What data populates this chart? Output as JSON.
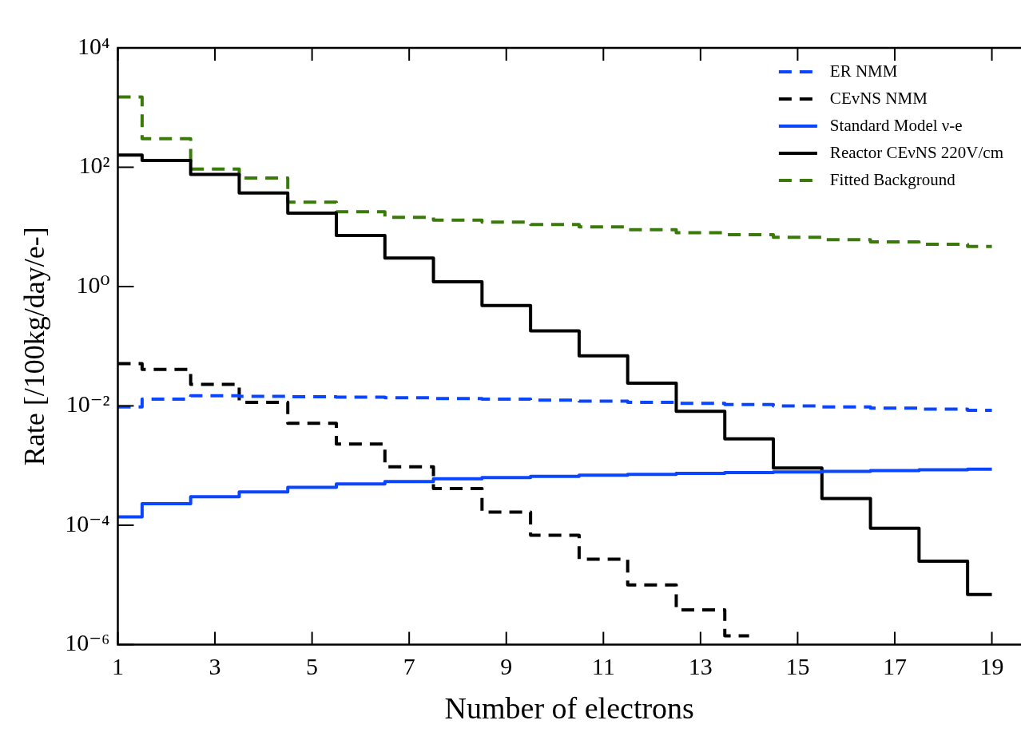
{
  "chart_data": {
    "type": "step",
    "xlabel": "Number of electrons",
    "ylabel": "Rate [/100kg/day/e-]",
    "log": "y",
    "legend": "top right",
    "grid": false,
    "x": [
      1,
      2,
      3,
      4,
      5,
      6,
      7,
      8,
      9,
      10,
      11,
      12,
      13,
      14,
      15,
      16,
      17,
      18,
      19
    ],
    "xlim": [
      1,
      19.6
    ],
    "xticks": [
      1,
      3,
      5,
      7,
      9,
      11,
      13,
      15,
      17,
      19
    ],
    "ylim": [
      1e-06,
      10000
    ],
    "yticks": [
      {
        "value": 10000,
        "label": "10⁴"
      },
      {
        "value": 100,
        "label": "10²"
      },
      {
        "value": 1,
        "label": "10⁰"
      },
      {
        "value": 0.01,
        "label": "10⁻²"
      },
      {
        "value": 0.0001,
        "label": "10⁻⁴"
      },
      {
        "value": 1e-06,
        "label": "10⁻⁶"
      }
    ],
    "series": [
      {
        "name": "ER NMM",
        "color": "#0a46ff",
        "line_style": "dashed",
        "values": [
          0.0096,
          0.013,
          0.0148,
          0.0145,
          0.0142,
          0.014,
          0.0137,
          0.0133,
          0.013,
          0.0125,
          0.012,
          0.0115,
          0.011,
          0.0105,
          0.01,
          0.0096,
          0.0092,
          0.0088,
          0.0084
        ]
      },
      {
        "name": "CEvNS NMM",
        "color": "#000000",
        "line_style": "dashed",
        "values": [
          0.051,
          0.041,
          0.023,
          0.0115,
          0.0051,
          0.0023,
          0.00095,
          0.00041,
          0.000166,
          6.8e-05,
          2.7e-05,
          1e-05,
          3.8e-06,
          1.4e-06,
          null,
          null,
          null,
          null,
          null
        ]
      },
      {
        "name": "Standard Model ν-e",
        "color": "#0a46ff",
        "line_style": "solid",
        "values": [
          0.000138,
          0.00023,
          0.0003,
          0.00036,
          0.00043,
          0.00049,
          0.00054,
          0.0006,
          0.00063,
          0.00066,
          0.00069,
          0.00071,
          0.00074,
          0.00076,
          0.00078,
          0.0008,
          0.00082,
          0.00085,
          0.00087
        ]
      },
      {
        "name": "Reactor CEνNS 220V/cm",
        "color": "#000000",
        "line_style": "solid",
        "values": [
          160,
          130,
          76,
          37,
          17,
          7.2,
          3.0,
          1.2,
          0.48,
          0.18,
          0.069,
          0.024,
          0.0081,
          0.0028,
          0.00091,
          0.00028,
          8.9e-05,
          2.5e-05,
          6.9e-06
        ]
      },
      {
        "name": "Fitted Background",
        "color": "#3a7a0a",
        "line_style": "dashed",
        "values": [
          1500,
          300,
          93,
          66,
          26,
          18,
          14.5,
          13,
          12,
          11,
          10,
          9,
          8,
          7.4,
          6.7,
          6.1,
          5.6,
          5.1,
          4.7
        ]
      }
    ]
  }
}
